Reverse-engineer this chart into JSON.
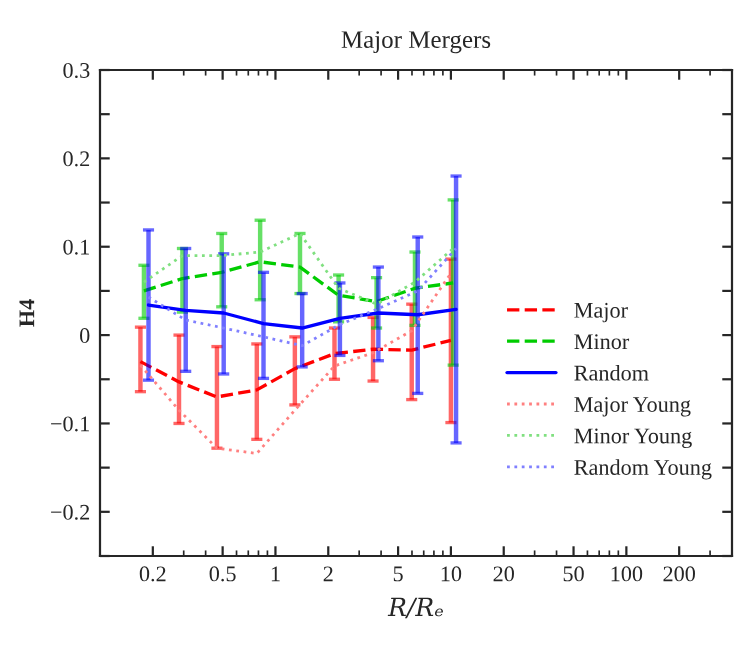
{
  "chart_data": {
    "type": "line",
    "title": "Major Mergers",
    "xlabel": "R/Rₑ",
    "ylabel": "H4",
    "log": "x",
    "grid": false,
    "legend": "right",
    "marker": "none",
    "xlim": [
      0.1,
      400
    ],
    "xticks": [
      0.2,
      0.5,
      1,
      2,
      5,
      10,
      20,
      50,
      100,
      200
    ],
    "ylim": [
      -0.25,
      0.3
    ],
    "yticks": [
      {
        "value": -0.25,
        "label": null
      },
      -0.2,
      {
        "value": -0.15,
        "label": null
      },
      -0.1,
      {
        "value": -0.05,
        "label": null
      },
      0,
      {
        "value": 0.05,
        "label": null
      },
      0.1,
      {
        "value": 0.15,
        "label": null
      },
      0.2,
      {
        "value": 0.25,
        "label": null
      },
      0.3
    ],
    "series": [
      {
        "name": "Major",
        "color": "#ff0000",
        "line_style": "dashed",
        "x": [
          0.17,
          0.282,
          0.464,
          0.783,
          1.29,
          2.17,
          3.6,
          5.98,
          10.0
        ],
        "values": [
          -0.03,
          -0.053,
          -0.07,
          -0.062,
          -0.038,
          -0.021,
          -0.016,
          -0.017,
          -0.006
        ],
        "errors": [
          [
            -0.064,
            0.009
          ],
          [
            -0.1,
            0.0
          ],
          [
            -0.128,
            -0.013
          ],
          [
            -0.118,
            -0.01
          ],
          [
            -0.079,
            -0.002
          ],
          [
            -0.05,
            0.008
          ],
          [
            -0.052,
            0.02
          ],
          [
            -0.073,
            0.035
          ],
          [
            -0.099,
            0.086
          ]
        ]
      },
      {
        "name": "Minor",
        "color": "#00cc00",
        "line_style": "dashed",
        "x": [
          0.178,
          0.295,
          0.494,
          0.818,
          1.38,
          2.29,
          3.77,
          6.24,
          10.3
        ],
        "values": [
          0.05,
          0.064,
          0.071,
          0.083,
          0.077,
          0.045,
          0.038,
          0.053,
          0.059
        ],
        "errors": [
          [
            0.019,
            0.079
          ],
          [
            0.026,
            0.098
          ],
          [
            0.032,
            0.115
          ],
          [
            0.04,
            0.13
          ],
          [
            0.047,
            0.115
          ],
          [
            0.015,
            0.068
          ],
          [
            0.008,
            0.065
          ],
          [
            0.011,
            0.094
          ],
          [
            -0.034,
            0.153
          ]
        ]
      },
      {
        "name": "Random",
        "color": "#0000ff",
        "line_style": "solid",
        "x": [
          0.189,
          0.308,
          0.507,
          0.855,
          1.42,
          2.33,
          3.86,
          6.47,
          10.7
        ],
        "values": [
          0.034,
          0.028,
          0.025,
          0.013,
          0.008,
          0.019,
          0.025,
          0.023,
          0.029
        ],
        "errors": [
          [
            -0.051,
            0.119
          ],
          [
            -0.041,
            0.098
          ],
          [
            -0.044,
            0.092
          ],
          [
            -0.049,
            0.071
          ],
          [
            -0.036,
            0.047
          ],
          [
            -0.023,
            0.059
          ],
          [
            -0.029,
            0.077
          ],
          [
            -0.066,
            0.111
          ],
          [
            -0.122,
            0.18
          ]
        ]
      },
      {
        "name": "Major Young",
        "color": "#ff8080",
        "line_style": "dotted",
        "x": [
          0.17,
          0.282,
          0.464,
          0.783,
          1.29,
          2.17,
          3.6,
          5.98,
          10.0
        ],
        "values": [
          -0.034,
          -0.085,
          -0.128,
          -0.134,
          -0.085,
          -0.035,
          -0.02,
          0.005,
          0.07
        ]
      },
      {
        "name": "Minor Young",
        "color": "#80e080",
        "line_style": "dotted",
        "x": [
          0.178,
          0.295,
          0.494,
          0.818,
          1.38,
          2.29,
          3.77,
          6.24,
          10.3
        ],
        "values": [
          0.06,
          0.09,
          0.09,
          0.094,
          0.115,
          0.053,
          0.035,
          0.06,
          0.098
        ]
      },
      {
        "name": "Random Young",
        "color": "#8080ff",
        "line_style": "dotted",
        "x": [
          0.189,
          0.308,
          0.507,
          0.855,
          1.42,
          2.33,
          3.86,
          6.47,
          10.7
        ],
        "values": [
          0.043,
          0.017,
          0.008,
          -0.002,
          -0.012,
          0.012,
          0.03,
          0.05,
          0.098
        ]
      }
    ]
  }
}
